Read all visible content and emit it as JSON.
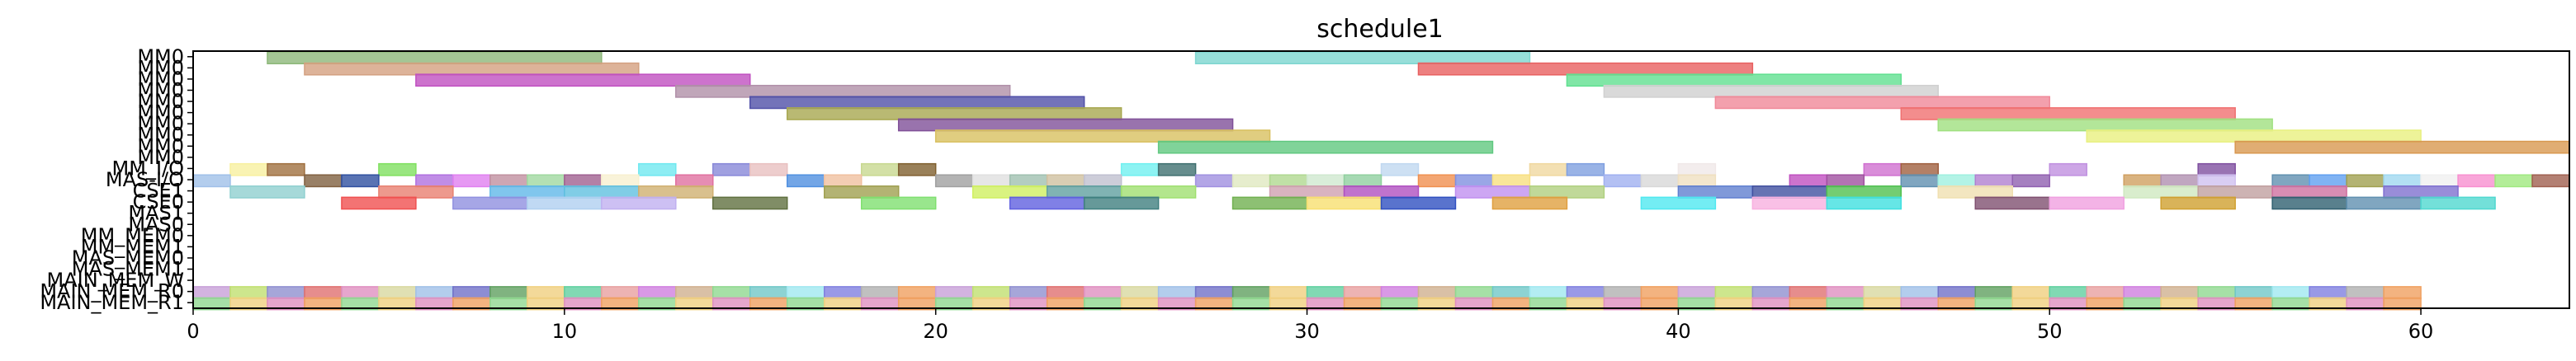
{
  "chart_data": {
    "type": "gantt",
    "title": "schedule1",
    "xlabel": "",
    "ylabel": "",
    "xlim": [
      0,
      64
    ],
    "x_ticks": [
      0,
      10,
      20,
      30,
      40,
      50,
      60
    ],
    "rows": [
      "MM0",
      "MM0",
      "MM0",
      "MM0",
      "MM0",
      "MM0",
      "MM0",
      "MM0",
      "MM0",
      "MM0",
      "MM_I/O",
      "MAS-I/O",
      "CSE1",
      "CSE0",
      "MAS1",
      "MAS0",
      "MM_MEM0",
      "MM_MEM1",
      "MAS_MEM0",
      "MAS_MEM1",
      "MAIN_MEM_W",
      "MAIN_MEM_R0",
      "MAIN_MEM_R1"
    ],
    "grid": false,
    "legend": "none",
    "palette": [
      "#e8a0a0",
      "#90d890",
      "#8080e0",
      "#c8a0d8",
      "#e07070",
      "#a0c0e8",
      "#f0d080",
      "#d080e0",
      "#70c8c8",
      "#b0b0b0",
      "#c0e070",
      "#e090c0",
      "#7070c8",
      "#60d0a0",
      "#d0b090",
      "#a0e8f0",
      "#f0a060",
      "#9090d0",
      "#d8d8a0",
      "#60a060"
    ],
    "bars": [
      {
        "row": 0,
        "start": 2,
        "end": 11,
        "color": "#8db87a"
      },
      {
        "row": 0,
        "start": 27,
        "end": 36,
        "color": "#7dd6d0"
      },
      {
        "row": 1,
        "start": 3,
        "end": 12,
        "color": "#d4a080"
      },
      {
        "row": 1,
        "start": 33,
        "end": 42,
        "color": "#e86060"
      },
      {
        "row": 2,
        "start": 6,
        "end": 15,
        "color": "#c050c0"
      },
      {
        "row": 2,
        "start": 37,
        "end": 46,
        "color": "#60e090"
      },
      {
        "row": 3,
        "start": 13,
        "end": 22,
        "color": "#b090a8"
      },
      {
        "row": 3,
        "start": 38,
        "end": 47,
        "color": "#d0d0d0"
      },
      {
        "row": 4,
        "start": 15,
        "end": 24,
        "color": "#5050a8"
      },
      {
        "row": 4,
        "start": 41,
        "end": 50,
        "color": "#f08898"
      },
      {
        "row": 5,
        "start": 16,
        "end": 25,
        "color": "#a8a850"
      },
      {
        "row": 5,
        "start": 46,
        "end": 55,
        "color": "#f07070"
      },
      {
        "row": 6,
        "start": 19,
        "end": 28,
        "color": "#805098"
      },
      {
        "row": 6,
        "start": 47,
        "end": 56,
        "color": "#a0e080"
      },
      {
        "row": 7,
        "start": 20,
        "end": 29,
        "color": "#d8c060"
      },
      {
        "row": 7,
        "start": 51,
        "end": 60,
        "color": "#e8f080"
      },
      {
        "row": 8,
        "start": 26,
        "end": 35,
        "color": "#60c880"
      },
      {
        "row": 8,
        "start": 55,
        "end": 64,
        "color": "#d89850"
      },
      {
        "row": 10,
        "start": 1,
        "end": 2,
        "color": "#f8f0a0"
      },
      {
        "row": 10,
        "start": 2,
        "end": 3,
        "color": "#a07040"
      },
      {
        "row": 10,
        "start": 5,
        "end": 6,
        "color": "#80e060"
      },
      {
        "row": 10,
        "start": 12,
        "end": 13,
        "color": "#70e8f0"
      },
      {
        "row": 10,
        "start": 14,
        "end": 15,
        "color": "#8888d8"
      },
      {
        "row": 10,
        "start": 15,
        "end": 16,
        "color": "#e8c0c0"
      },
      {
        "row": 10,
        "start": 18,
        "end": 19,
        "color": "#c8d890"
      },
      {
        "row": 10,
        "start": 19,
        "end": 20,
        "color": "#806030"
      },
      {
        "row": 10,
        "start": 25,
        "end": 26,
        "color": "#70f0f0"
      },
      {
        "row": 10,
        "start": 26,
        "end": 27,
        "color": "#407070"
      },
      {
        "row": 10,
        "start": 32,
        "end": 33,
        "color": "#c0d8f0"
      },
      {
        "row": 10,
        "start": 36,
        "end": 37,
        "color": "#f0d8a0"
      },
      {
        "row": 10,
        "start": 37,
        "end": 38,
        "color": "#80a0e0"
      },
      {
        "row": 10,
        "start": 40,
        "end": 41,
        "color": "#f0e8e8"
      },
      {
        "row": 10,
        "start": 45,
        "end": 46,
        "color": "#d070d0"
      },
      {
        "row": 10,
        "start": 46,
        "end": 47,
        "color": "#a06040"
      },
      {
        "row": 10,
        "start": 50,
        "end": 51,
        "color": "#c090e0"
      },
      {
        "row": 10,
        "start": 54,
        "end": 55,
        "color": "#8050a0"
      },
      {
        "row": 11,
        "start": 0,
        "end": 1,
        "color": "#a0c0e8"
      },
      {
        "row": 11,
        "start": 3,
        "end": 4,
        "color": "#806040"
      },
      {
        "row": 11,
        "start": 4,
        "end": 5,
        "color": "#3050a0"
      },
      {
        "row": 11,
        "start": 6,
        "end": 7,
        "color": "#b070e0"
      },
      {
        "row": 11,
        "start": 7,
        "end": 8,
        "color": "#e080f0"
      },
      {
        "row": 11,
        "start": 8,
        "end": 9,
        "color": "#c090a0"
      },
      {
        "row": 11,
        "start": 9,
        "end": 10,
        "color": "#a0d8a0"
      },
      {
        "row": 11,
        "start": 10,
        "end": 11,
        "color": "#a06090"
      },
      {
        "row": 11,
        "start": 11,
        "end": 12,
        "color": "#f8f0d0"
      },
      {
        "row": 11,
        "start": 13,
        "end": 14,
        "color": "#e070a0"
      },
      {
        "row": 11,
        "start": 16,
        "end": 17,
        "color": "#5090e0"
      },
      {
        "row": 11,
        "start": 17,
        "end": 18,
        "color": "#f0c0a0"
      },
      {
        "row": 11,
        "start": 20,
        "end": 21,
        "color": "#a0a0a0"
      },
      {
        "row": 11,
        "start": 21,
        "end": 22,
        "color": "#e0e0e0"
      },
      {
        "row": 11,
        "start": 22,
        "end": 23,
        "color": "#a0c0b0"
      },
      {
        "row": 11,
        "start": 23,
        "end": 24,
        "color": "#d0c0a0"
      },
      {
        "row": 11,
        "start": 24,
        "end": 25,
        "color": "#c0c0d0"
      },
      {
        "row": 11,
        "start": 27,
        "end": 28,
        "color": "#a090e0"
      },
      {
        "row": 11,
        "start": 28,
        "end": 29,
        "color": "#e0e8c0"
      },
      {
        "row": 11,
        "start": 29,
        "end": 30,
        "color": "#b0d890"
      },
      {
        "row": 11,
        "start": 30,
        "end": 31,
        "color": "#d0e8d0"
      },
      {
        "row": 11,
        "start": 31,
        "end": 32,
        "color": "#90d0a0"
      },
      {
        "row": 11,
        "start": 33,
        "end": 34,
        "color": "#f09050"
      },
      {
        "row": 11,
        "start": 34,
        "end": 35,
        "color": "#8090e0"
      },
      {
        "row": 11,
        "start": 35,
        "end": 36,
        "color": "#f8e080"
      },
      {
        "row": 11,
        "start": 38,
        "end": 39,
        "color": "#a0b0f0"
      },
      {
        "row": 11,
        "start": 39,
        "end": 40,
        "color": "#d8d8d8"
      },
      {
        "row": 11,
        "start": 40,
        "end": 41,
        "color": "#f0e0c0"
      },
      {
        "row": 11,
        "start": 43,
        "end": 44,
        "color": "#c050c0"
      },
      {
        "row": 11,
        "start": 44,
        "end": 45,
        "color": "#a050a0"
      },
      {
        "row": 11,
        "start": 46,
        "end": 47,
        "color": "#6090b0"
      },
      {
        "row": 11,
        "start": 47,
        "end": 48,
        "color": "#a0f0e0"
      },
      {
        "row": 11,
        "start": 48,
        "end": 49,
        "color": "#b080d0"
      },
      {
        "row": 11,
        "start": 49,
        "end": 50,
        "color": "#9060b0"
      },
      {
        "row": 11,
        "start": 52,
        "end": 53,
        "color": "#d0a060"
      },
      {
        "row": 11,
        "start": 53,
        "end": 54,
        "color": "#b090b0"
      },
      {
        "row": 11,
        "start": 54,
        "end": 55,
        "color": "#d0c0f0"
      },
      {
        "row": 11,
        "start": 56,
        "end": 57,
        "color": "#6090b0"
      },
      {
        "row": 11,
        "start": 57,
        "end": 58,
        "color": "#60a0f0"
      },
      {
        "row": 11,
        "start": 58,
        "end": 59,
        "color": "#a0a050"
      },
      {
        "row": 11,
        "start": 59,
        "end": 60,
        "color": "#a0d8f0"
      },
      {
        "row": 11,
        "start": 60,
        "end": 61,
        "color": "#f0f0f0"
      },
      {
        "row": 11,
        "start": 61,
        "end": 62,
        "color": "#f890d0"
      },
      {
        "row": 11,
        "start": 62,
        "end": 63,
        "color": "#a0e880"
      },
      {
        "row": 11,
        "start": 63,
        "end": 64,
        "color": "#a06050"
      },
      {
        "row": 12,
        "start": 1,
        "end": 3,
        "color": "#90d0d0"
      },
      {
        "row": 12,
        "start": 5,
        "end": 7,
        "color": "#e88070"
      },
      {
        "row": 12,
        "start": 8,
        "end": 10,
        "color": "#60b8e8"
      },
      {
        "row": 12,
        "start": 10,
        "end": 12,
        "color": "#60c0e0"
      },
      {
        "row": 12,
        "start": 12,
        "end": 14,
        "color": "#d0b070"
      },
      {
        "row": 12,
        "start": 17,
        "end": 19,
        "color": "#a0a050"
      },
      {
        "row": 12,
        "start": 21,
        "end": 23,
        "color": "#d0f060"
      },
      {
        "row": 12,
        "start": 23,
        "end": 25,
        "color": "#60a0a0"
      },
      {
        "row": 12,
        "start": 25,
        "end": 27,
        "color": "#a0e070"
      },
      {
        "row": 12,
        "start": 29,
        "end": 31,
        "color": "#d0a0b0"
      },
      {
        "row": 12,
        "start": 31,
        "end": 33,
        "color": "#b050c0"
      },
      {
        "row": 12,
        "start": 34,
        "end": 36,
        "color": "#c090f0"
      },
      {
        "row": 12,
        "start": 36,
        "end": 38,
        "color": "#b0d080"
      },
      {
        "row": 12,
        "start": 40,
        "end": 42,
        "color": "#6080d0"
      },
      {
        "row": 12,
        "start": 42,
        "end": 44,
        "color": "#4050a0"
      },
      {
        "row": 12,
        "start": 44,
        "end": 46,
        "color": "#50c050"
      },
      {
        "row": 12,
        "start": 47,
        "end": 49,
        "color": "#f0e0b0"
      },
      {
        "row": 12,
        "start": 52,
        "end": 54,
        "color": "#d0e8c0"
      },
      {
        "row": 12,
        "start": 54,
        "end": 56,
        "color": "#c0a0a0"
      },
      {
        "row": 12,
        "start": 56,
        "end": 58,
        "color": "#d070a0"
      },
      {
        "row": 12,
        "start": 59,
        "end": 61,
        "color": "#8070d0"
      },
      {
        "row": 13,
        "start": 4,
        "end": 6,
        "color": "#f05050"
      },
      {
        "row": 13,
        "start": 7,
        "end": 9,
        "color": "#9090e0"
      },
      {
        "row": 13,
        "start": 9,
        "end": 11,
        "color": "#b0d0f0"
      },
      {
        "row": 13,
        "start": 11,
        "end": 13,
        "color": "#c0b0f0"
      },
      {
        "row": 13,
        "start": 14,
        "end": 16,
        "color": "#607040"
      },
      {
        "row": 13,
        "start": 18,
        "end": 20,
        "color": "#80e070"
      },
      {
        "row": 13,
        "start": 22,
        "end": 24,
        "color": "#6060e0"
      },
      {
        "row": 13,
        "start": 24,
        "end": 26,
        "color": "#408080"
      },
      {
        "row": 13,
        "start": 28,
        "end": 30,
        "color": "#70b050"
      },
      {
        "row": 13,
        "start": 30,
        "end": 32,
        "color": "#f8e070"
      },
      {
        "row": 13,
        "start": 32,
        "end": 34,
        "color": "#3050c0"
      },
      {
        "row": 13,
        "start": 35,
        "end": 37,
        "color": "#e0a040"
      },
      {
        "row": 13,
        "start": 39,
        "end": 41,
        "color": "#50e8f0"
      },
      {
        "row": 13,
        "start": 42,
        "end": 44,
        "color": "#f8b0e0"
      },
      {
        "row": 13,
        "start": 44,
        "end": 46,
        "color": "#40e0e0"
      },
      {
        "row": 13,
        "start": 48,
        "end": 50,
        "color": "#805070"
      },
      {
        "row": 13,
        "start": 50,
        "end": 52,
        "color": "#f0a0e0"
      },
      {
        "row": 13,
        "start": 53,
        "end": 55,
        "color": "#d0a030"
      },
      {
        "row": 13,
        "start": 56,
        "end": 58,
        "color": "#306070"
      },
      {
        "row": 13,
        "start": 58,
        "end": 60,
        "color": "#6090b0"
      },
      {
        "row": 13,
        "start": 60,
        "end": 62,
        "color": "#50d8d0"
      }
    ],
    "memory_rows_period": 1,
    "memory_rows_end": 60
  }
}
